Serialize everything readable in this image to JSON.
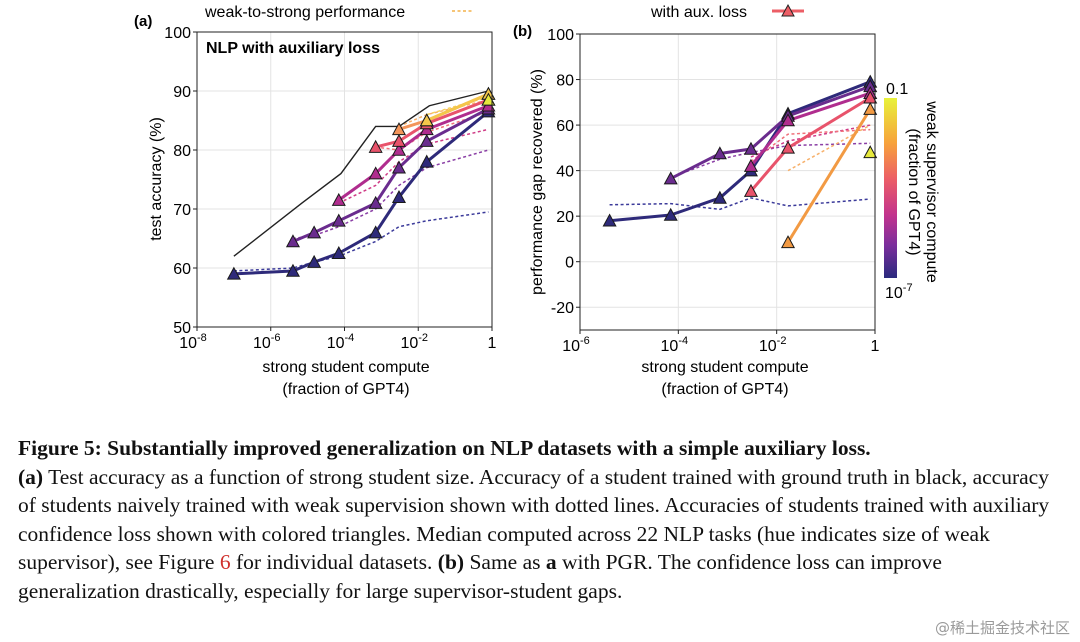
{
  "chart_data": [
    {
      "panel_label": "(a)",
      "type": "line",
      "title": "NLP with auxiliary loss",
      "legend": "weak-to-strong performance",
      "xlabel": [
        "strong student compute",
        "(fraction of GPT4)"
      ],
      "ylabel": "test accuracy (%)",
      "x_scale": "log",
      "xlim": [
        1e-08,
        1
      ],
      "ylim": [
        50,
        100
      ],
      "xticks": [
        {
          "v": 1e-08,
          "base": "10",
          "exp": "-8"
        },
        {
          "v": 1e-06,
          "base": "10",
          "exp": "-6"
        },
        {
          "v": 0.0001,
          "base": "10",
          "exp": "-4"
        },
        {
          "v": 0.01,
          "base": "10",
          "exp": "-2"
        },
        {
          "v": 1,
          "base": "1",
          "exp": ""
        }
      ],
      "yticks": [
        50,
        60,
        70,
        80,
        90,
        100
      ],
      "grid": true,
      "ground_truth": {
        "color": "#222222",
        "x": [
          1e-07,
          7e-06,
          8e-05,
          0.0007,
          0.003,
          0.02,
          0.8
        ],
        "y": [
          62,
          71,
          76,
          84,
          84,
          87.5,
          90
        ]
      },
      "aux_series": [
        {
          "color": "#2e2a7a",
          "x": [
            1e-07,
            4e-06,
            1.5e-05,
            7e-05,
            0.0007,
            0.003,
            0.017,
            0.8
          ],
          "y": [
            59,
            59.5,
            61,
            62.5,
            66,
            72,
            78,
            86.5
          ]
        },
        {
          "color": "#6a2c8e",
          "x": [
            4e-06,
            1.5e-05,
            7e-05,
            0.0007,
            0.003,
            0.017,
            0.8
          ],
          "y": [
            64.5,
            66,
            68,
            71,
            77,
            81.5,
            87
          ]
        },
        {
          "color": "#b02d8e",
          "x": [
            7e-05,
            0.0007,
            0.003,
            0.017,
            0.8
          ],
          "y": [
            71.5,
            76,
            80,
            83.5,
            87.5
          ]
        },
        {
          "color": "#e8536b",
          "x": [
            0.0007,
            0.003,
            0.017,
            0.8
          ],
          "y": [
            80.5,
            81.5,
            84.5,
            88.5
          ]
        },
        {
          "color": "#f3955a",
          "x": [
            0.003,
            0.017,
            0.8
          ],
          "y": [
            83.5,
            85,
            89.5
          ]
        },
        {
          "color": "#f4c64a",
          "x": [
            0.017,
            0.8
          ],
          "y": [
            85,
            89.5
          ]
        },
        {
          "color": "#e6e83c",
          "x": [
            0.8
          ],
          "y": [
            88.5
          ]
        }
      ],
      "naive_series": [
        {
          "color": "#3b3a9a",
          "x": [
            1e-07,
            4e-06,
            1.5e-05,
            7e-05,
            0.0007,
            0.003,
            0.017,
            0.8
          ],
          "y": [
            59.5,
            60,
            61,
            62,
            64.5,
            67,
            68,
            69.5
          ]
        },
        {
          "color": "#8a3ea5",
          "x": [
            4e-06,
            1.5e-05,
            7e-05,
            0.0007,
            0.003,
            0.017,
            0.8
          ],
          "y": [
            65,
            65.5,
            67,
            70,
            74,
            77,
            80
          ]
        },
        {
          "color": "#cf3b86",
          "x": [
            7e-05,
            0.0007,
            0.003,
            0.017,
            0.8
          ],
          "y": [
            71,
            74,
            78,
            81,
            83.5
          ]
        },
        {
          "color": "#f0707a",
          "x": [
            0.0007,
            0.003,
            0.017,
            0.8
          ],
          "y": [
            80.5,
            80,
            83,
            86.5
          ]
        },
        {
          "color": "#f7b06a",
          "x": [
            0.003,
            0.017,
            0.8
          ],
          "y": [
            84,
            86,
            88.5
          ]
        },
        {
          "color": "#f4d35a",
          "x": [
            0.017,
            0.8
          ],
          "y": [
            86,
            89
          ]
        }
      ]
    },
    {
      "panel_label": "(b)",
      "type": "line",
      "legend": "with aux. loss",
      "xlabel": [
        "strong student compute",
        "(fraction of GPT4)"
      ],
      "ylabel": "performance gap recovered (%)",
      "x_scale": "log",
      "xlim": [
        1e-06,
        1
      ],
      "ylim": [
        -30,
        100
      ],
      "xticks": [
        {
          "v": 1e-06,
          "base": "10",
          "exp": "-6"
        },
        {
          "v": 0.0001,
          "base": "10",
          "exp": "-4"
        },
        {
          "v": 0.01,
          "base": "10",
          "exp": "-2"
        },
        {
          "v": 1,
          "base": "1",
          "exp": ""
        }
      ],
      "yticks": [
        -20,
        0,
        20,
        40,
        60,
        80,
        100
      ],
      "grid": true,
      "aux_series": [
        {
          "color": "#2e2a7a",
          "x": [
            4e-06,
            7e-05,
            0.0007,
            0.003,
            0.017,
            0.8
          ],
          "y": [
            18,
            20.5,
            28,
            40,
            65,
            79
          ]
        },
        {
          "color": "#6a2c8e",
          "x": [
            7e-05,
            0.0007,
            0.003,
            0.017,
            0.8
          ],
          "y": [
            36.5,
            47.5,
            49.5,
            64,
            77
          ]
        },
        {
          "color": "#b02d8e",
          "x": [
            0.003,
            0.017,
            0.8
          ],
          "y": [
            42,
            62,
            74
          ]
        },
        {
          "color": "#e8536b",
          "x": [
            0.003,
            0.017,
            0.8
          ],
          "y": [
            31,
            50,
            72
          ]
        },
        {
          "color": "#f29a43",
          "x": [
            0.017,
            0.8
          ],
          "y": [
            8.5,
            67
          ]
        },
        {
          "color": "#e6e83c",
          "x": [
            0.8
          ],
          "y": [
            48
          ]
        }
      ],
      "naive_series": [
        {
          "color": "#3b3a9a",
          "x": [
            4e-06,
            7e-05,
            0.0007,
            0.003,
            0.017,
            0.8
          ],
          "y": [
            25,
            25.5,
            23,
            28,
            24.5,
            27.5
          ]
        },
        {
          "color": "#8a3ea5",
          "x": [
            7e-05,
            0.0007,
            0.003,
            0.017,
            0.8
          ],
          "y": [
            37,
            45,
            48,
            51,
            52
          ]
        },
        {
          "color": "#cf3b86",
          "x": [
            0.003,
            0.017,
            0.8
          ],
          "y": [
            46,
            53,
            60
          ]
        },
        {
          "color": "#f0707a",
          "x": [
            0.003,
            0.017,
            0.8
          ],
          "y": [
            44,
            56,
            58
          ]
        },
        {
          "color": "#f7b06a",
          "x": [
            0.017,
            0.8
          ],
          "y": [
            40,
            60
          ]
        }
      ],
      "colorbar": {
        "label": [
          "weak supervisor compute",
          "(fraction of GPT4)"
        ],
        "top_label": "0.1",
        "bottom_label": {
          "base": "10",
          "exp": "-7"
        },
        "colors": [
          "#e8f23a",
          "#f7a23b",
          "#ec5e66",
          "#c2338d",
          "#7a2e9c",
          "#2a2a7e"
        ]
      }
    }
  ],
  "caption": {
    "label": "Figure 5:",
    "title": "Substantially improved generalization on NLP datasets with a simple auxiliary loss.",
    "part_a_label": "(a)",
    "part_a_text": " Test accuracy as a function of strong student size.  Accuracy of a student trained with ground truth in black, accuracy of students naively trained with weak supervision shown with dotted lines. Accuracies of students trained with auxiliary confidence loss shown with colored triangles. Median computed across 22 NLP tasks (hue indicates size of weak supervisor), see Figure ",
    "figure_ref": "6",
    "part_a_text_end": " for individual datasets.  ",
    "part_b_label": "(b)",
    "part_b_text_1": " Same as ",
    "part_b_bold_a": "a",
    "part_b_text_2": " with PGR. The confidence loss can improve generalization drastically, especially for large supervisor-student gaps."
  },
  "watermark": "@稀土掘金技术社区"
}
